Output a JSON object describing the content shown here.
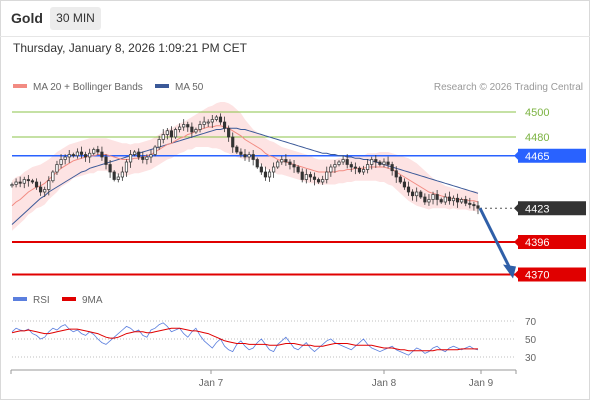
{
  "header": {
    "title": "Gold",
    "timeframe": "30 MIN"
  },
  "timestamp": "Thursday, January 8, 2026 1:09:21 PM CET",
  "legend": {
    "ma20_label": "MA 20 + Bollinger Bands",
    "ma50_label": "MA 50",
    "copyright": "Research © 2026 Trading Central"
  },
  "rsi_legend": {
    "rsi_label": "RSI",
    "ma_label": "9MA"
  },
  "colors": {
    "ma20": "#f28b82",
    "ma50": "#3b5998",
    "resistance": "#8bc34a",
    "pivot": "#2962ff",
    "support": "#e00000",
    "current": "#333333",
    "rsi": "#5b7fde",
    "rsi_ma": "#e00000",
    "band_fill": "#fde3e3"
  },
  "chart_data": [
    {
      "type": "candlestick",
      "title": "Gold",
      "timeframe": "30 MIN",
      "x_labels": [
        "Jan 7",
        "Jan 8",
        "Jan 9"
      ],
      "ylim": [
        4360,
        4512
      ],
      "levels": [
        {
          "value": 4500,
          "label": "4500",
          "kind": "resistance"
        },
        {
          "value": 4480,
          "label": "4480",
          "kind": "resistance"
        },
        {
          "value": 4465,
          "label": "4465",
          "kind": "pivot"
        },
        {
          "value": 4423,
          "label": "4423",
          "kind": "current"
        },
        {
          "value": 4396,
          "label": "4396",
          "kind": "support"
        },
        {
          "value": 4370,
          "label": "4370",
          "kind": "support"
        }
      ],
      "close_series": [
        4442,
        4444,
        4443,
        4446,
        4445,
        4444,
        4440,
        4436,
        4438,
        4445,
        4452,
        4458,
        4462,
        4464,
        4466,
        4465,
        4468,
        4466,
        4464,
        4467,
        4470,
        4468,
        4464,
        4458,
        4452,
        4446,
        4448,
        4452,
        4460,
        4466,
        4468,
        4464,
        4462,
        4464,
        4466,
        4472,
        4478,
        4482,
        4485,
        4480,
        4486,
        4488,
        4490,
        4488,
        4484,
        4486,
        4490,
        4492,
        4492,
        4494,
        4496,
        4492,
        4487,
        4480,
        4472,
        4468,
        4466,
        4464,
        4466,
        4462,
        4456,
        4452,
        4448,
        4452,
        4456,
        4460,
        4462,
        4460,
        4458,
        4456,
        4452,
        4446,
        4450,
        4448,
        4446,
        4444,
        4446,
        4452,
        4456,
        4458,
        4460,
        4462,
        4458,
        4456,
        4455,
        4452,
        4454,
        4458,
        4462,
        4460,
        4458,
        4460,
        4458,
        4453,
        4448,
        4444,
        4440,
        4436,
        4433,
        4436,
        4432,
        4428,
        4430,
        4434,
        4430,
        4428,
        4432,
        4429,
        4431,
        4428,
        4430,
        4427,
        4426,
        4425,
        4423
      ],
      "ma20_series": [
        4425,
        4428,
        4430,
        4433,
        4436,
        4438,
        4440,
        4441,
        4443,
        4446,
        4449,
        4452,
        4455,
        4457,
        4459,
        4461,
        4462,
        4463,
        4464,
        4465,
        4465,
        4466,
        4466,
        4466,
        4465,
        4464,
        4463,
        4462,
        4462,
        4462,
        4463,
        4463,
        4464,
        4465,
        4466,
        4468,
        4470,
        4472,
        4474,
        4475,
        4477,
        4479,
        4480,
        4482,
        4483,
        4485,
        4486,
        4487,
        4488,
        4488,
        4489,
        4489,
        4488,
        4487,
        4485,
        4483,
        4481,
        4478,
        4476,
        4474,
        4472,
        4470,
        4467,
        4465,
        4464,
        4462,
        4461,
        4460,
        4459,
        4458,
        4457,
        4456,
        4455,
        4454,
        4453,
        4452,
        4452,
        4452,
        4452,
        4452,
        4453,
        4453,
        4454,
        4454,
        4455,
        4455,
        4455,
        4456,
        4456,
        4456,
        4456,
        4456,
        4455,
        4454,
        4452,
        4450,
        4448,
        4446,
        4444,
        4442,
        4440,
        4438,
        4436,
        4435,
        4434,
        4433,
        4432,
        4431,
        4431,
        4430,
        4430,
        4430,
        4429,
        4429,
        4428
      ],
      "ma50_series": [
        4410,
        4413,
        4416,
        4419,
        4422,
        4425,
        4428,
        4431,
        4433,
        4436,
        4438,
        4440,
        4442,
        4444,
        4446,
        4448,
        4450,
        4452,
        4453,
        4455,
        4456,
        4457,
        4458,
        4459,
        4460,
        4461,
        4462,
        4463,
        4464,
        4465,
        4466,
        4467,
        4468,
        4469,
        4470,
        4471,
        4472,
        4473,
        4474,
        4475,
        4476,
        4477,
        4478,
        4479,
        4480,
        4481,
        4482,
        4483,
        4484,
        4485,
        4486,
        4486,
        4487,
        4487,
        4487,
        4487,
        4486,
        4486,
        4485,
        4484,
        4483,
        4482,
        4481,
        4480,
        4479,
        4478,
        4477,
        4476,
        4475,
        4474,
        4473,
        4472,
        4471,
        4470,
        4469,
        4468,
        4467,
        4467,
        4466,
        4466,
        4465,
        4465,
        4464,
        4464,
        4463,
        4463,
        4462,
        4462,
        4461,
        4460,
        4459,
        4458,
        4457,
        4456,
        4455,
        4454,
        4453,
        4452,
        4451,
        4450,
        4449,
        4448,
        4447,
        4446,
        4445,
        4444,
        4443,
        4442,
        4441,
        4440,
        4439,
        4438,
        4437,
        4436,
        4435
      ],
      "band_half_width": [
        20,
        20,
        19,
        19,
        18,
        18,
        17,
        17,
        17,
        16,
        16,
        16,
        15,
        15,
        15,
        14,
        14,
        14,
        14,
        14,
        14,
        13,
        13,
        13,
        13,
        13,
        13,
        13,
        13,
        12,
        12,
        12,
        12,
        12,
        12,
        12,
        12,
        12,
        12,
        12,
        12,
        12,
        12,
        12,
        13,
        13,
        14,
        15,
        16,
        17,
        18,
        19,
        20,
        20,
        20,
        19,
        18,
        16,
        14,
        12,
        12,
        12,
        12,
        12,
        12,
        12,
        11,
        11,
        11,
        11,
        11,
        11,
        11,
        11,
        10,
        10,
        10,
        10,
        10,
        10,
        10,
        10,
        10,
        10,
        10,
        10,
        10,
        11,
        11,
        11,
        12,
        12,
        13,
        13,
        14,
        15,
        16,
        17,
        17,
        17,
        16,
        15,
        14,
        12,
        11,
        10,
        9,
        9,
        8,
        8,
        8,
        8,
        8,
        8,
        8
      ],
      "forecast": {
        "from": 4423,
        "to": 4370
      },
      "current_value": 4423
    },
    {
      "type": "line",
      "title": "RSI",
      "ylim": [
        20,
        80
      ],
      "y_ticks": [
        70,
        50,
        30
      ],
      "tick_labels": [
        "70",
        "50",
        "30"
      ],
      "series": [
        {
          "name": "RSI",
          "values": [
            58,
            62,
            60,
            59,
            61,
            56,
            54,
            50,
            52,
            58,
            62,
            60,
            64,
            66,
            61,
            58,
            60,
            56,
            54,
            58,
            55,
            50,
            46,
            44,
            48,
            52,
            56,
            60,
            64,
            62,
            58,
            60,
            54,
            52,
            60,
            62,
            66,
            68,
            64,
            58,
            60,
            62,
            56,
            52,
            58,
            62,
            54,
            48,
            44,
            40,
            46,
            50,
            42,
            38,
            36,
            44,
            48,
            42,
            38,
            40,
            46,
            50,
            44,
            38,
            36,
            44,
            48,
            52,
            46,
            40,
            38,
            42,
            46,
            40,
            36,
            40,
            44,
            48,
            50,
            46,
            44,
            42,
            40,
            38,
            42,
            46,
            50,
            44,
            40,
            38,
            36,
            38,
            40,
            42,
            38,
            36,
            34,
            32,
            36,
            40,
            38,
            34,
            36,
            40,
            42,
            38,
            36,
            40,
            42,
            40,
            38,
            40,
            42,
            39,
            38
          ]
        },
        {
          "name": "9MA",
          "values": [
            57,
            58,
            59,
            59,
            60,
            59,
            58,
            57,
            56,
            56,
            57,
            58,
            59,
            60,
            61,
            61,
            61,
            60,
            59,
            58,
            57,
            56,
            54,
            52,
            51,
            51,
            52,
            54,
            56,
            57,
            58,
            58,
            58,
            57,
            57,
            58,
            59,
            60,
            61,
            62,
            62,
            62,
            61,
            60,
            59,
            59,
            58,
            57,
            56,
            54,
            52,
            50,
            48,
            47,
            46,
            45,
            45,
            45,
            44,
            44,
            44,
            44,
            44,
            43,
            43,
            43,
            44,
            45,
            45,
            45,
            44,
            43,
            43,
            43,
            42,
            42,
            42,
            43,
            44,
            45,
            45,
            45,
            45,
            44,
            43,
            43,
            43,
            43,
            43,
            42,
            41,
            40,
            40,
            40,
            39,
            38,
            38,
            37,
            37,
            37,
            37,
            37,
            37,
            37,
            38,
            38,
            38,
            38,
            38,
            38,
            39,
            39,
            39,
            39,
            39
          ]
        }
      ]
    }
  ]
}
